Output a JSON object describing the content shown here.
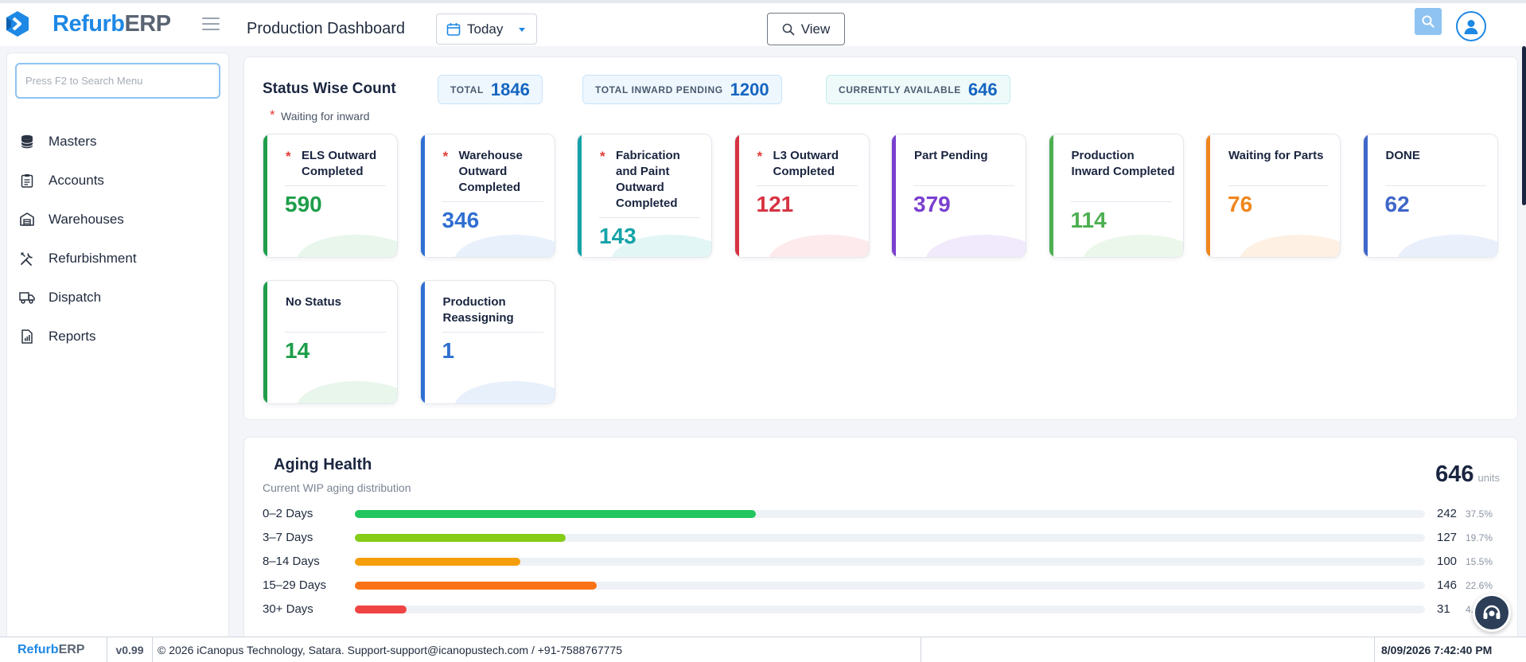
{
  "header": {
    "brand_a": "Refurb",
    "brand_b": "ERP",
    "title": "Production Dashboard",
    "period": "Today",
    "view_label": "View"
  },
  "sidebar": {
    "search_placeholder": "Press F2 to Search Menu",
    "items": [
      {
        "label": "Masters",
        "icon": "database-icon"
      },
      {
        "label": "Accounts",
        "icon": "clipboard-icon"
      },
      {
        "label": "Warehouses",
        "icon": "warehouse-icon"
      },
      {
        "label": "Refurbishment",
        "icon": "tools-icon"
      },
      {
        "label": "Dispatch",
        "icon": "truck-icon"
      },
      {
        "label": "Reports",
        "icon": "report-icon"
      }
    ]
  },
  "status": {
    "title": "Status Wise Count",
    "note": "Waiting for inward",
    "totals": [
      {
        "label": "TOTAL",
        "value": "1846"
      },
      {
        "label": "TOTAL INWARD PENDING",
        "value": "1200"
      },
      {
        "label": "CURRENTLY AVAILABLE",
        "value": "646"
      }
    ],
    "cards": [
      {
        "title": "ELS Outward Completed",
        "value": "590",
        "color": "#1e9e4a",
        "wave": "#e8f6ec",
        "asterisk": true
      },
      {
        "title": "Warehouse Outward Completed",
        "value": "346",
        "color": "#2f6fd1",
        "wave": "#e8f0fc",
        "asterisk": true
      },
      {
        "title": "Fabrication and Paint Outward Completed",
        "value": "143",
        "color": "#14a3a8",
        "wave": "#e3f6f6",
        "asterisk": true
      },
      {
        "title": "L3 Outward Completed",
        "value": "121",
        "color": "#d63343",
        "wave": "#fdeaec",
        "asterisk": true
      },
      {
        "title": "Part Pending",
        "value": "379",
        "color": "#7a3fcf",
        "wave": "#f1eafc",
        "asterisk": false
      },
      {
        "title": "Production Inward Completed",
        "value": "114",
        "color": "#4caf50",
        "wave": "#ecf7ec",
        "asterisk": false
      },
      {
        "title": "Waiting for Parts",
        "value": "76",
        "color": "#f0861d",
        "wave": "#fef1e3",
        "asterisk": false
      },
      {
        "title": "DONE",
        "value": "62",
        "color": "#3f66c8",
        "wave": "#e9effb",
        "asterisk": false
      },
      {
        "title": "No Status",
        "value": "14",
        "color": "#1e9e4a",
        "wave": "#e8f6ec",
        "asterisk": false
      },
      {
        "title": "Production Reassigning",
        "value": "1",
        "color": "#2f6fd1",
        "wave": "#e8f0fc",
        "asterisk": false
      }
    ]
  },
  "aging": {
    "title": "Aging Health",
    "subtitle": "Current WIP aging distribution",
    "total": "646",
    "unit": "units",
    "rows": [
      {
        "label": "0–2 Days",
        "count": "242",
        "pct": "37.5%",
        "ratio": 0.375,
        "color": "#22c55e"
      },
      {
        "label": "3–7 Days",
        "count": "127",
        "pct": "19.7%",
        "ratio": 0.197,
        "color": "#84cc16"
      },
      {
        "label": "8–14 Days",
        "count": "100",
        "pct": "15.5%",
        "ratio": 0.155,
        "color": "#f59e0b"
      },
      {
        "label": "15–29 Days",
        "count": "146",
        "pct": "22.6%",
        "ratio": 0.226,
        "color": "#f97316"
      },
      {
        "label": "30+ Days",
        "count": "31",
        "pct": "4.8%",
        "ratio": 0.048,
        "color": "#ef4444"
      }
    ]
  },
  "footer": {
    "brand_a": "Refurb",
    "brand_b": "ERP",
    "version": "v0.99",
    "copyright": "© 2026 iCanopus Technology, Satara. Support-support@icanopustech.com / +91-7588767775",
    "datetime": "8/09/2026 7:42:40 PM"
  }
}
